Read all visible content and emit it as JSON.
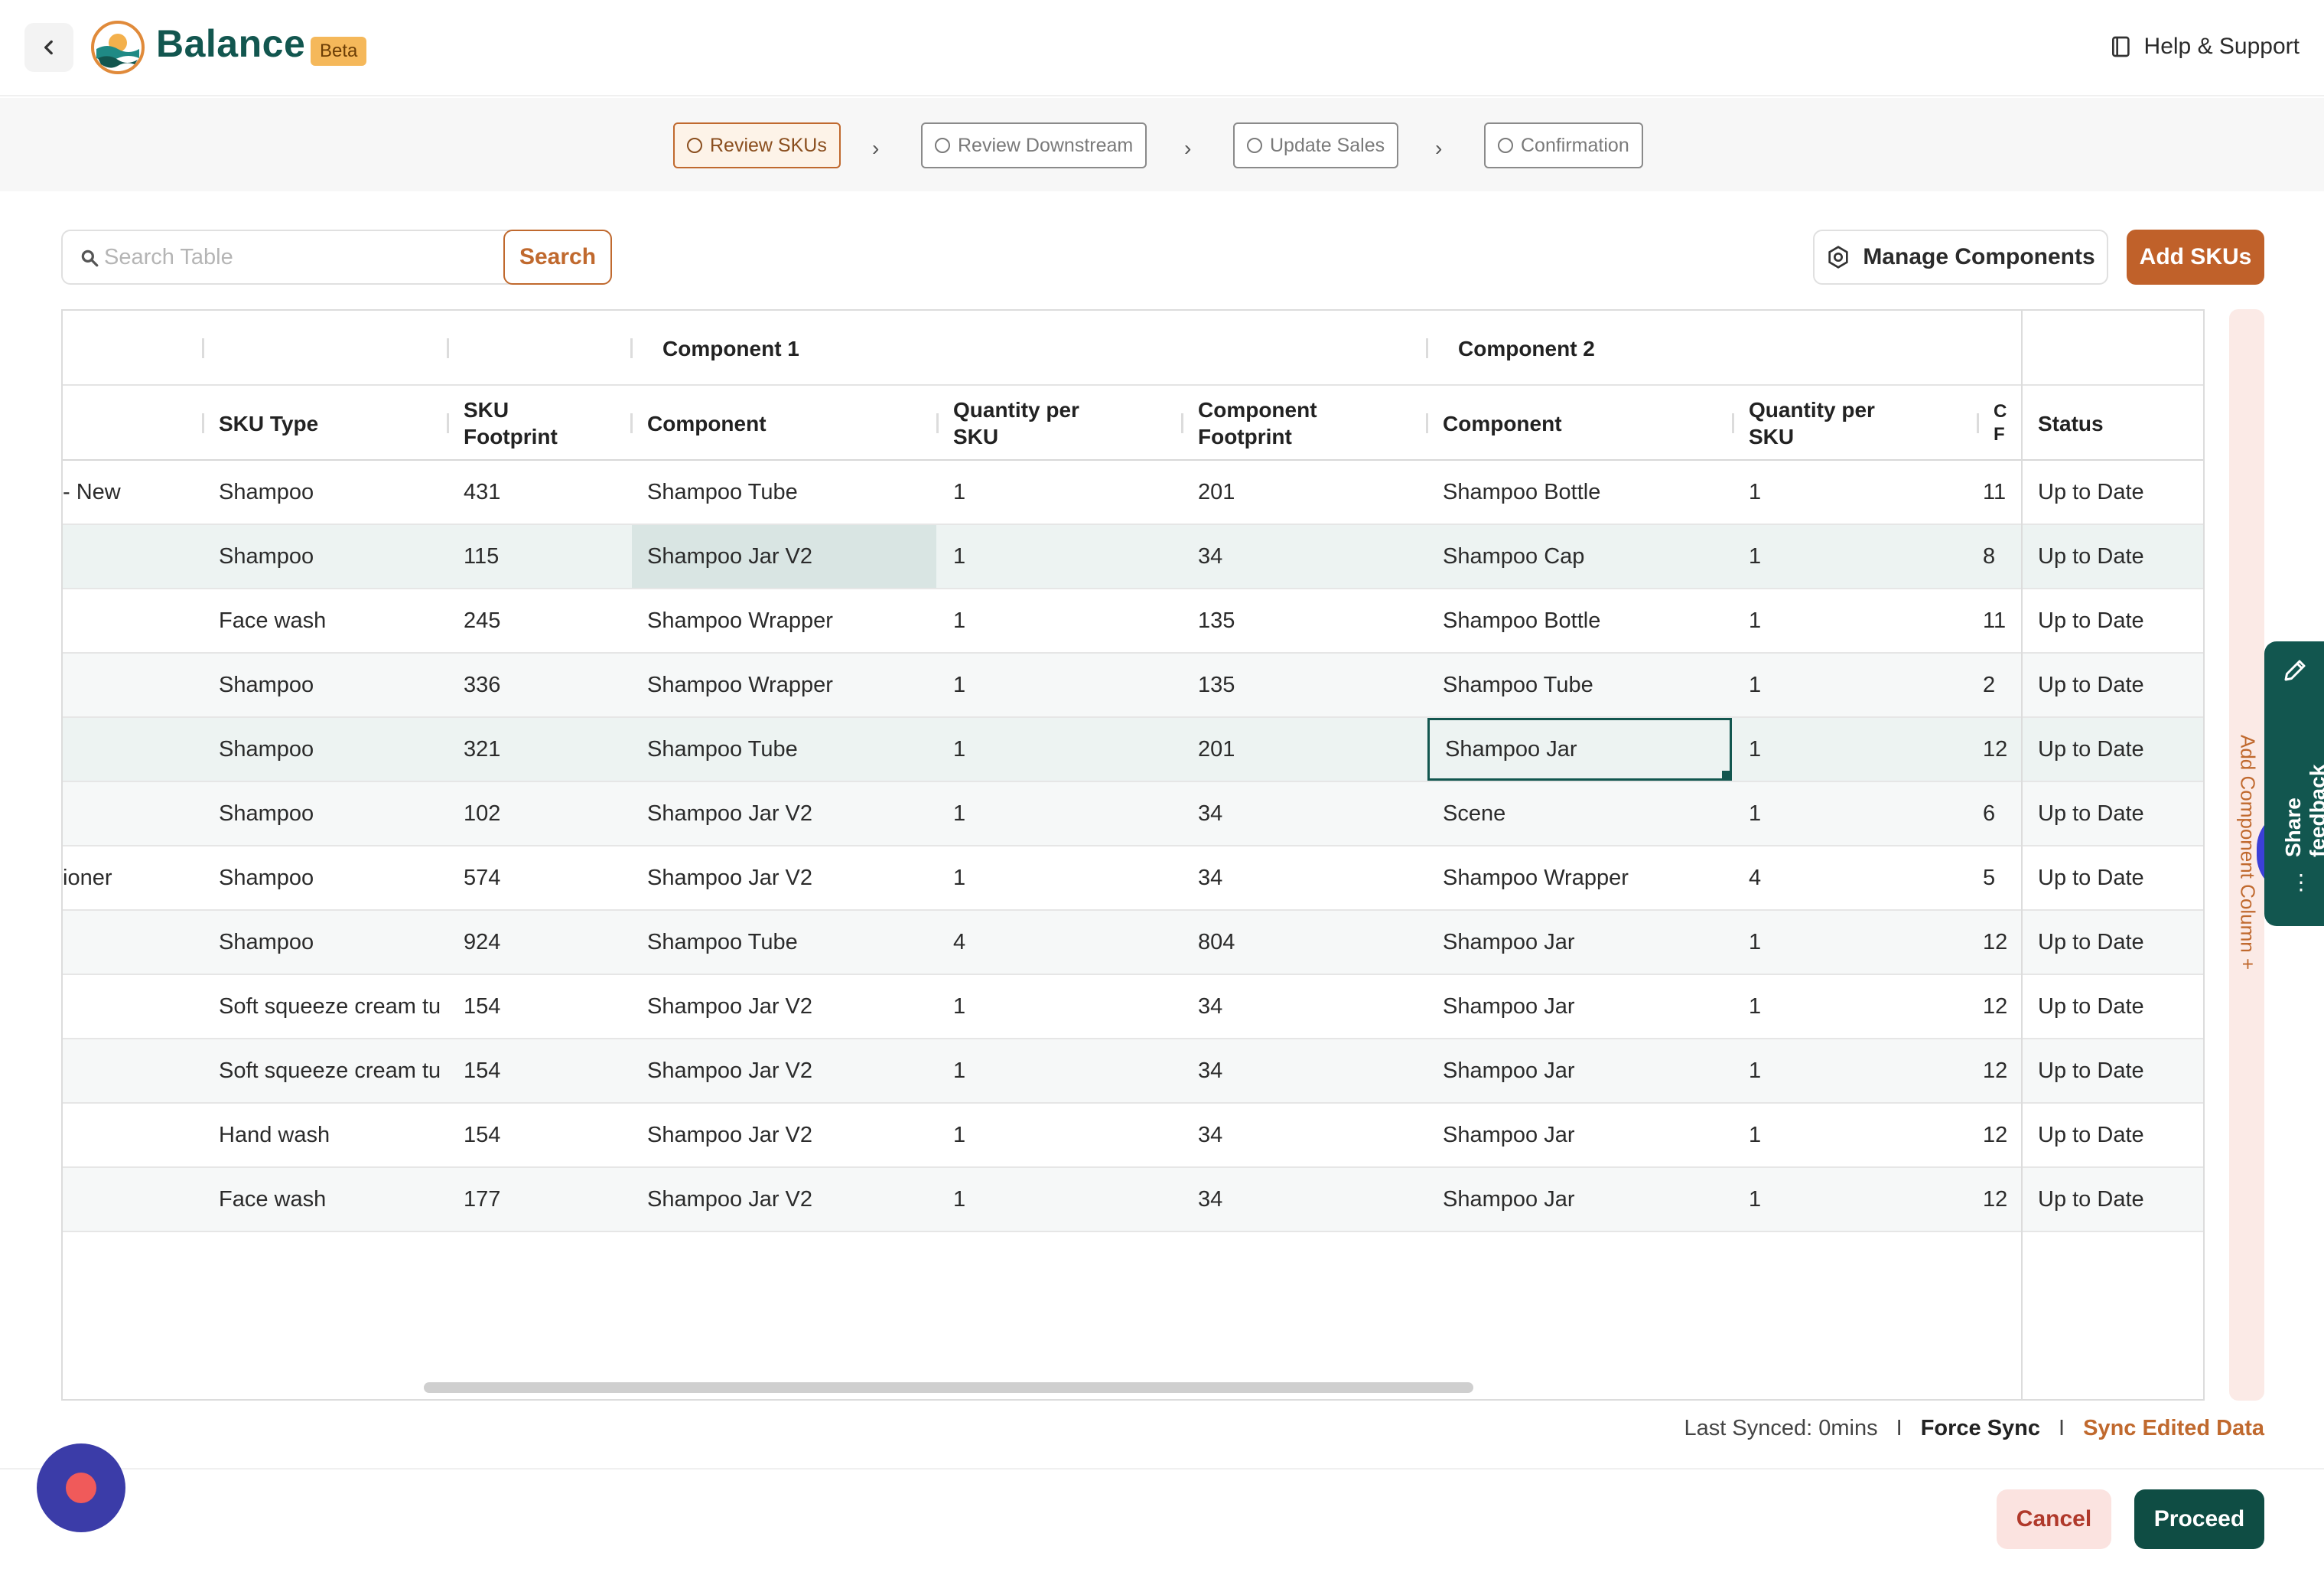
{
  "app": {
    "brand": "Balance",
    "badge": "Beta",
    "help_label": "Help & Support"
  },
  "stepper": [
    {
      "label": "Review SKUs",
      "active": true
    },
    {
      "label": "Review Downstream",
      "active": false
    },
    {
      "label": "Update Sales",
      "active": false
    },
    {
      "label": "Confirmation",
      "active": false
    }
  ],
  "toolbar": {
    "search_placeholder": "Search Table",
    "search_label": "Search",
    "manage_label": "Manage Components",
    "add_label": "Add SKUs"
  },
  "table": {
    "groups": {
      "component1": "Component 1",
      "component2": "Component 2"
    },
    "headers": {
      "sku_type": "SKU Type",
      "sku_footprint": "SKU Footprint",
      "c1_component": "Component",
      "c1_qty": "Quantity per SKU",
      "c1_footprint": "Component Footprint",
      "c2_component": "Component",
      "c2_qty": "Quantity per SKU",
      "c2_footprint": "C F",
      "status": "Status"
    },
    "rows": [
      {
        "name": "- New",
        "type": "Shampoo",
        "fp": "431",
        "c1": "Shampoo Tube",
        "q1": "1",
        "f1": "201",
        "c2": "Shampoo Bottle",
        "q2": "1",
        "f2": "11",
        "status": "Up to Date"
      },
      {
        "name": "",
        "type": "Shampoo",
        "fp": "115",
        "c1": "Shampoo Jar V2",
        "q1": "1",
        "f1": "34",
        "c2": "Shampoo Cap",
        "q2": "1",
        "f2": "8",
        "status": "Up to Date"
      },
      {
        "name": "",
        "type": "Face wash",
        "fp": "245",
        "c1": "Shampoo Wrapper",
        "q1": "1",
        "f1": "135",
        "c2": "Shampoo Bottle",
        "q2": "1",
        "f2": "11",
        "status": "Up to Date"
      },
      {
        "name": "",
        "type": "Shampoo",
        "fp": "336",
        "c1": "Shampoo Wrapper",
        "q1": "1",
        "f1": "135",
        "c2": "Shampoo Tube",
        "q2": "1",
        "f2": "2",
        "status": "Up to Date"
      },
      {
        "name": "",
        "type": "Shampoo",
        "fp": "321",
        "c1": "Shampoo Tube",
        "q1": "1",
        "f1": "201",
        "c2": "Shampoo Jar",
        "q2": "1",
        "f2": "12",
        "status": "Up to Date"
      },
      {
        "name": "",
        "type": "Shampoo",
        "fp": "102",
        "c1": "Shampoo Jar V2",
        "q1": "1",
        "f1": "34",
        "c2": "Scene",
        "q2": "1",
        "f2": "6",
        "status": "Up to Date"
      },
      {
        "name": "ioner",
        "type": "Shampoo",
        "fp": "574",
        "c1": "Shampoo Jar V2",
        "q1": "1",
        "f1": "34",
        "c2": "Shampoo Wrapper",
        "q2": "4",
        "f2": "5",
        "status": "Up to Date"
      },
      {
        "name": "",
        "type": "Shampoo",
        "fp": "924",
        "c1": "Shampoo Tube",
        "q1": "4",
        "f1": "804",
        "c2": "Shampoo Jar",
        "q2": "1",
        "f2": "12",
        "status": "Up to Date"
      },
      {
        "name": "",
        "type": "Soft squeeze cream tu",
        "fp": "154",
        "c1": "Shampoo Jar V2",
        "q1": "1",
        "f1": "34",
        "c2": "Shampoo Jar",
        "q2": "1",
        "f2": "12",
        "status": "Up to Date"
      },
      {
        "name": "",
        "type": "Soft squeeze cream tu",
        "fp": "154",
        "c1": "Shampoo Jar V2",
        "q1": "1",
        "f1": "34",
        "c2": "Shampoo Jar",
        "q2": "1",
        "f2": "12",
        "status": "Up to Date"
      },
      {
        "name": "",
        "type": "Hand wash",
        "fp": "154",
        "c1": "Shampoo Jar V2",
        "q1": "1",
        "f1": "34",
        "c2": "Shampoo Jar",
        "q2": "1",
        "f2": "12",
        "status": "Up to Date"
      },
      {
        "name": "",
        "type": "Face wash",
        "fp": "177",
        "c1": "Shampoo Jar V2",
        "q1": "1",
        "f1": "34",
        "c2": "Shampoo Jar",
        "q2": "1",
        "f2": "12",
        "status": "Up to Date"
      }
    ]
  },
  "side": {
    "add_column": "Add Component Column +",
    "feedback": "Share feedback"
  },
  "sync": {
    "last_synced": "Last Synced: 0mins",
    "divider": "I",
    "force_sync": "Force Sync",
    "sync_edited": "Sync Edited Data"
  },
  "footer": {
    "cancel": "Cancel",
    "proceed": "Proceed"
  },
  "colors": {
    "brand": "#12564f",
    "accent": "#c0692e",
    "proceed": "#0f4d44",
    "cancel_bg": "#fbe3e0"
  }
}
